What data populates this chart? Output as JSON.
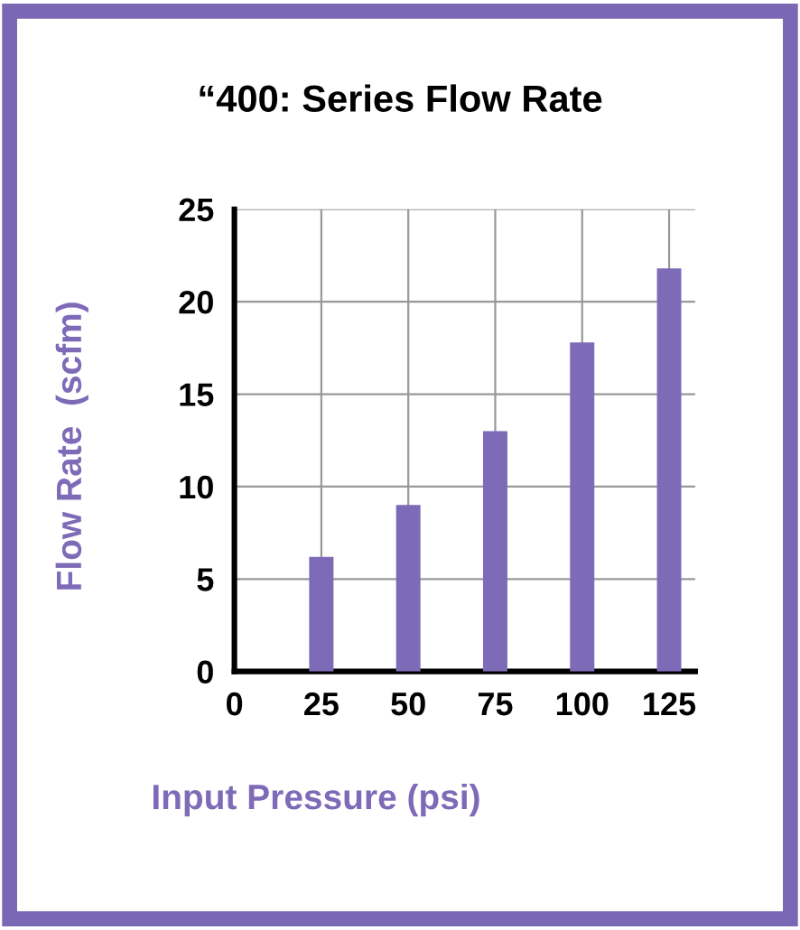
{
  "chart_data": {
    "type": "bar",
    "title": "“400: Series Flow Rate",
    "xlabel": "Input Pressure (psi)",
    "ylabel": "Flow Rate  (scfm)",
    "categories": [
      "0",
      "25",
      "50",
      "75",
      "100",
      "125"
    ],
    "values": [
      null,
      6.2,
      9,
      13,
      17.8,
      21.8
    ],
    "color": "#7e6bb8",
    "ylim": [
      0,
      25
    ],
    "yticks": [
      0,
      5,
      10,
      15,
      20,
      25
    ],
    "grid": true
  }
}
